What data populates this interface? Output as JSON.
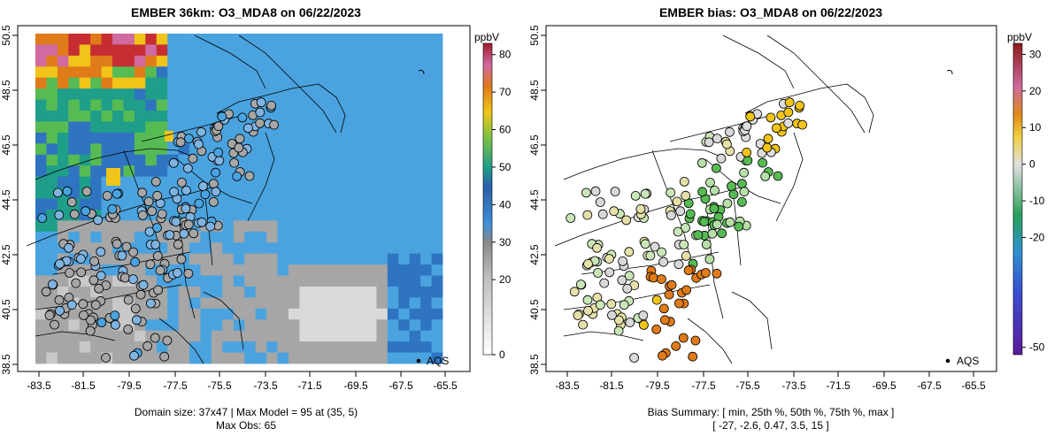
{
  "chart_data": [
    {
      "type": "heatmap",
      "title": "EMBER 36km: O3_MDA8 on 06/22/2023",
      "x_ticks": [
        "-83.5",
        "-81.5",
        "-79.5",
        "-77.5",
        "-75.5",
        "-73.5",
        "-71.5",
        "-69.5",
        "-67.5",
        "-65.5"
      ],
      "y_ticks": [
        "38.5",
        "40.5",
        "42.5",
        "44.5",
        "46.5",
        "48.5",
        "50.5"
      ],
      "xlim": [
        -84.5,
        -64.5
      ],
      "ylim": [
        38.5,
        50.5
      ],
      "colorbar_label": "ppbV",
      "colorbar_ticks": [
        "0",
        "20",
        "30",
        "40",
        "50",
        "60",
        "70",
        "80"
      ],
      "colorbar_range": [
        0,
        83
      ],
      "legend_label": "AQS",
      "caption_line1": "Domain size: 37x47 | Max Model = 95 at (35, 5)",
      "caption_line2": "Max Obs: 65"
    },
    {
      "type": "scatter",
      "title": "EMBER bias: O3_MDA8 on 06/22/2023",
      "x_ticks": [
        "-83.5",
        "-81.5",
        "-79.5",
        "-77.5",
        "-75.5",
        "-73.5",
        "-71.5",
        "-69.5",
        "-67.5",
        "-65.5"
      ],
      "y_ticks": [
        "38.5",
        "40.5",
        "42.5",
        "44.5",
        "46.5",
        "48.5",
        "50.5"
      ],
      "xlim": [
        -84.5,
        -64.5
      ],
      "ylim": [
        38.5,
        50.5
      ],
      "colorbar_label": "ppbV",
      "colorbar_ticks": [
        "-50",
        "-20",
        "-10",
        "0",
        "10",
        "20",
        "30"
      ],
      "colorbar_range": [
        -52,
        33
      ],
      "legend_label": "AQS",
      "caption_line1": "Bias Summary: [ min, 25th %, 50th %, 75th %, max ]",
      "caption_line2": "[ -27,   -2.6,   0.47,   3.5,   15 ]",
      "bias_summary": {
        "min": -27,
        "p25": -2.6,
        "p50": 0.47,
        "p75": 3.5,
        "max": 15
      }
    }
  ],
  "colors": {
    "gray": "#a6a6a6",
    "blue": "#4aa3df",
    "darkblue": "#2f74c0",
    "teal": "#1f9e89",
    "green": "#57bb54",
    "yellow": "#f0c419",
    "orange": "#e07b19",
    "red": "#c62d33",
    "pink": "#d06aa0"
  }
}
